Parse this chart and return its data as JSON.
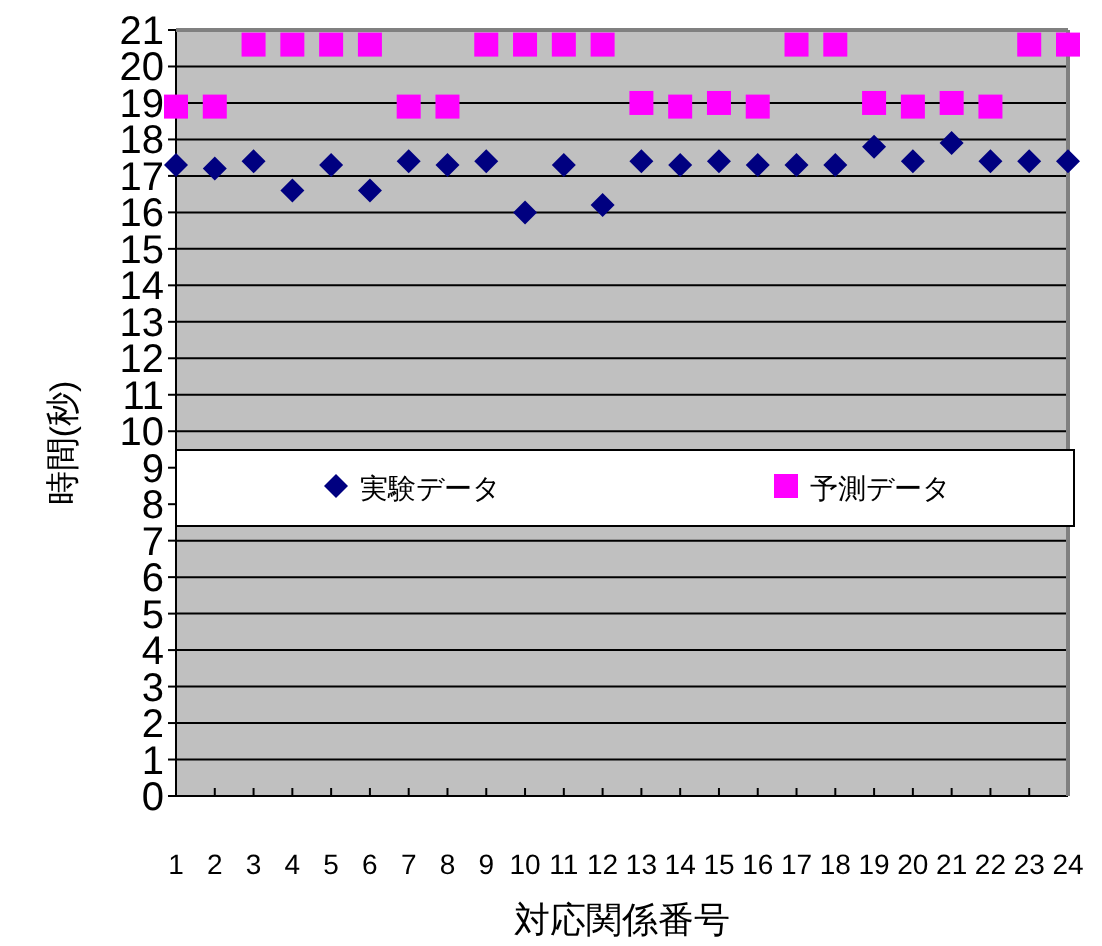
{
  "chart_data": {
    "type": "scatter",
    "xlabel": "対応関係番号",
    "ylabel": "時間(秒)",
    "x": [
      1,
      2,
      3,
      4,
      5,
      6,
      7,
      8,
      9,
      10,
      11,
      12,
      13,
      14,
      15,
      16,
      17,
      18,
      19,
      20,
      21,
      22,
      23,
      24
    ],
    "series": [
      {
        "name": "実験データ",
        "color": "#000080",
        "marker": "diamond",
        "values": [
          17.3,
          17.2,
          17.4,
          16.6,
          17.3,
          16.6,
          17.4,
          17.3,
          17.4,
          16.0,
          17.3,
          16.2,
          17.4,
          17.3,
          17.4,
          17.3,
          17.3,
          17.3,
          17.8,
          17.4,
          17.9,
          17.4,
          17.4,
          17.4
        ]
      },
      {
        "name": "予測データ",
        "color": "#ff00ff",
        "marker": "square",
        "values": [
          18.9,
          18.9,
          20.6,
          20.6,
          20.6,
          20.6,
          18.9,
          18.9,
          20.6,
          20.6,
          20.6,
          20.6,
          19.0,
          18.9,
          19.0,
          18.9,
          20.6,
          20.6,
          19.0,
          18.9,
          19.0,
          18.9,
          20.6,
          20.6
        ]
      }
    ],
    "xlim": [
      1,
      24
    ],
    "xticks": [
      1,
      2,
      3,
      4,
      5,
      6,
      7,
      8,
      9,
      10,
      11,
      12,
      13,
      14,
      15,
      16,
      17,
      18,
      19,
      20,
      21,
      22,
      23,
      24
    ],
    "ylim": [
      0,
      21
    ],
    "yticks": [
      0,
      1,
      2,
      3,
      4,
      5,
      6,
      7,
      8,
      9,
      10,
      11,
      12,
      13,
      14,
      15,
      16,
      17,
      18,
      19,
      20,
      21
    ],
    "grid": "y",
    "legend": "center"
  }
}
